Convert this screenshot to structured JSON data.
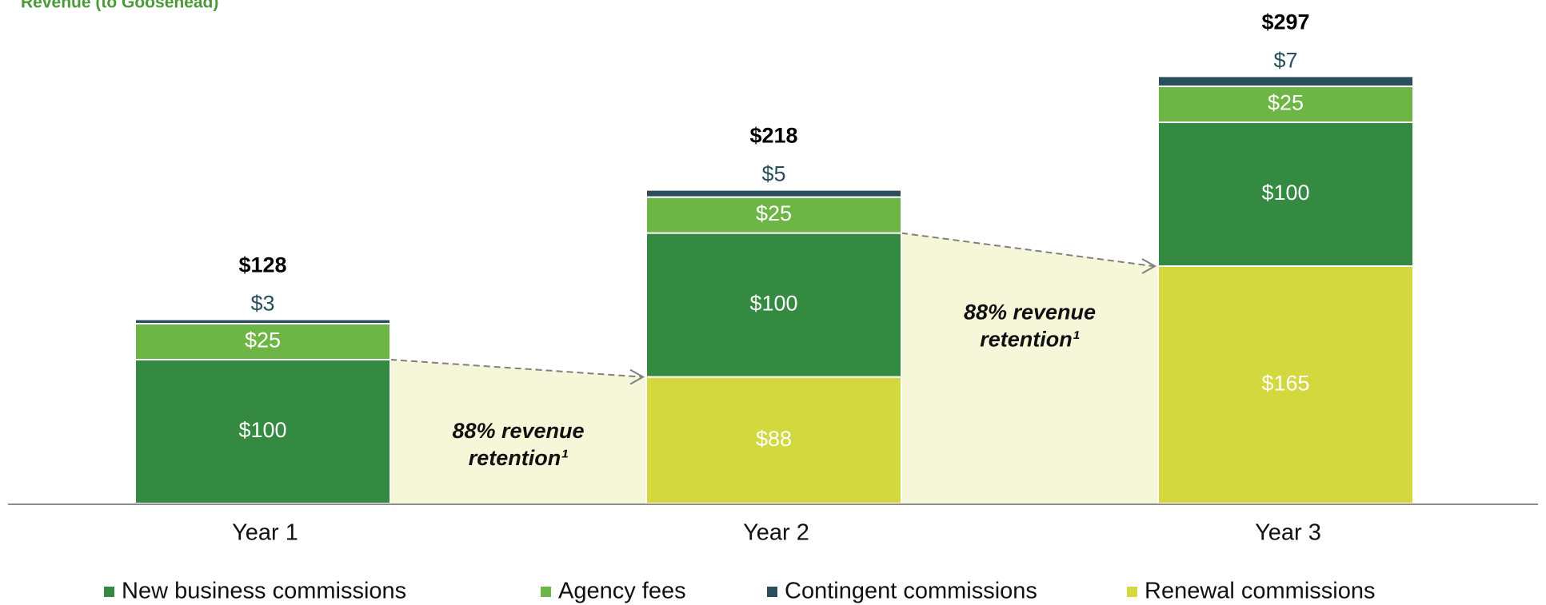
{
  "chart_data": {
    "type": "stacked_bar",
    "title": "Revenue (to Goosehead)",
    "categories": [
      "Year 1",
      "Year 2",
      "Year 3"
    ],
    "series": [
      {
        "name": "Renewal commissions",
        "color": "#d4d83f",
        "values": [
          null,
          88,
          165
        ],
        "value_labels": [
          null,
          "$88",
          "$165"
        ],
        "label_color": "#ffffff"
      },
      {
        "name": "New business commissions",
        "color": "#358a41",
        "values": [
          100,
          100,
          100
        ],
        "value_labels": [
          "$100",
          "$100",
          "$100"
        ],
        "label_color": "#ffffff"
      },
      {
        "name": "Agency fees",
        "color": "#6db544",
        "values": [
          25,
          25,
          25
        ],
        "value_labels": [
          "$25",
          "$25",
          "$25"
        ],
        "label_color": "#ffffff"
      },
      {
        "name": "Contingent commissions",
        "color": "#2b4f5a",
        "values": [
          3,
          5,
          7
        ],
        "value_labels": [
          "$3",
          "$5",
          "$7"
        ],
        "label_color": "#2b4f5a"
      }
    ],
    "legend_order": [
      1,
      2,
      3,
      0
    ],
    "totals": [
      128,
      218,
      297
    ],
    "total_labels": [
      "$128",
      "$218",
      "$297"
    ],
    "annotations": [
      [
        "88% revenue",
        "retention¹"
      ],
      [
        "88% revenue",
        "retention¹"
      ]
    ]
  }
}
